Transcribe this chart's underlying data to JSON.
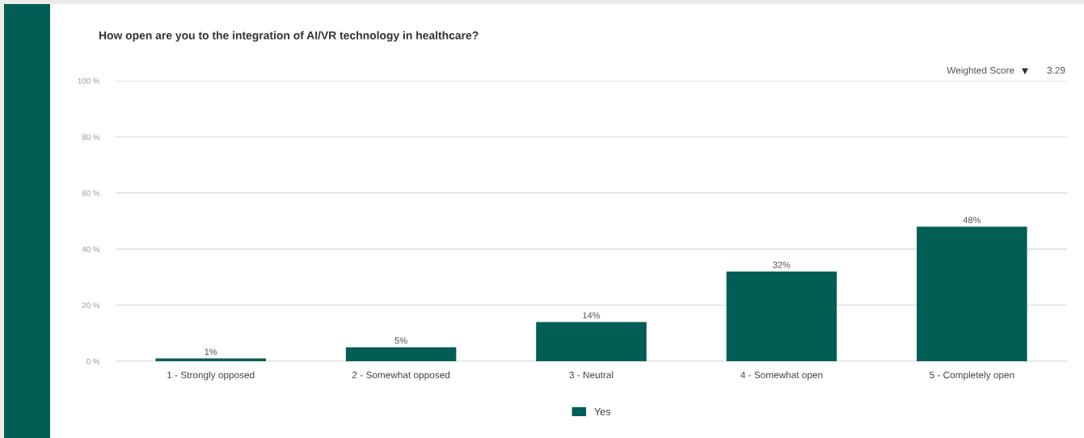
{
  "chart_data": {
    "type": "bar",
    "title": "How open are you to the integration of AI/VR technology in healthcare?",
    "categories": [
      "1 - Strongly opposed",
      "2 - Somewhat opposed",
      "3 - Neutral",
      "4 - Somewhat open",
      "5 - Completely open"
    ],
    "series": [
      {
        "name": "Yes",
        "color": "#005e55",
        "values": [
          1,
          5,
          14,
          32,
          48
        ],
        "value_labels": [
          "1%",
          "5%",
          "14%",
          "32%",
          "48%"
        ]
      }
    ],
    "ylim": [
      0,
      100
    ],
    "yticks": [
      {
        "value": 0,
        "label": "0 %"
      },
      {
        "value": 20,
        "label": "20 %"
      },
      {
        "value": 40,
        "label": "40 %"
      },
      {
        "value": 60,
        "label": "60 %"
      },
      {
        "value": 80,
        "label": "80 %"
      },
      {
        "value": 100,
        "label": "100 %"
      }
    ],
    "grid": "y",
    "legend": "bottom",
    "annotations": [
      "Weighted Score",
      "3.29"
    ]
  }
}
